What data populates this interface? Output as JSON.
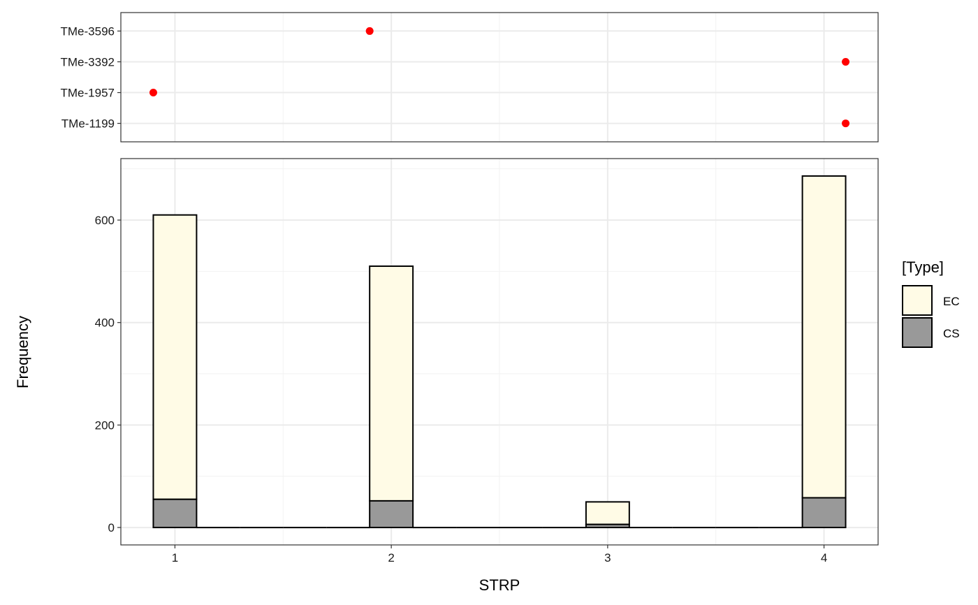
{
  "chart_data": [
    {
      "type": "scatter",
      "panel": "top",
      "categories": [
        "TMe-1199",
        "TMe-1957",
        "TMe-3392",
        "TMe-3596"
      ],
      "points": [
        {
          "x": 1.9,
          "y": "TMe-3596"
        },
        {
          "x": 4.1,
          "y": "TMe-3392"
        },
        {
          "x": 0.9,
          "y": "TMe-1957"
        },
        {
          "x": 4.1,
          "y": "TMe-1199"
        }
      ],
      "xlim": [
        0.75,
        4.25
      ],
      "point_color": "#ff0000",
      "grid": true
    },
    {
      "type": "bar",
      "panel": "bottom",
      "stacked": true,
      "bin_width": 0.2,
      "bins": [
        0.9,
        1.1,
        1.3,
        1.5,
        1.7,
        1.9,
        2.1,
        2.3,
        2.5,
        2.7,
        2.9,
        3.1,
        3.3,
        3.5,
        3.7,
        3.9
      ],
      "series": [
        {
          "name": "EC",
          "color": "#fffbe6",
          "values": [
            555,
            0,
            0,
            0,
            0,
            458,
            0,
            0,
            0,
            0,
            44,
            0,
            0,
            0,
            0,
            628
          ]
        },
        {
          "name": "CS",
          "color": "#999999",
          "values": [
            55,
            0,
            0,
            0,
            0,
            52,
            0,
            0,
            0,
            0,
            6,
            0,
            0,
            0,
            0,
            58
          ]
        }
      ],
      "xticks": [
        "1",
        "2",
        "3",
        "4"
      ],
      "xtick_values": [
        1,
        2,
        3,
        4
      ],
      "yticks": [
        "0",
        "200",
        "400",
        "600"
      ],
      "ytick_values": [
        0,
        200,
        400,
        600
      ],
      "xlim": [
        0.75,
        4.25
      ],
      "ylim": [
        -34,
        720
      ],
      "xlabel": "STRP",
      "ylabel": "Frequency",
      "grid": true
    }
  ],
  "legend": {
    "title": "[Type]",
    "placement": "right",
    "items": [
      {
        "label": "EC",
        "color": "#fffbe6"
      },
      {
        "label": "CS",
        "color": "#999999"
      }
    ]
  }
}
